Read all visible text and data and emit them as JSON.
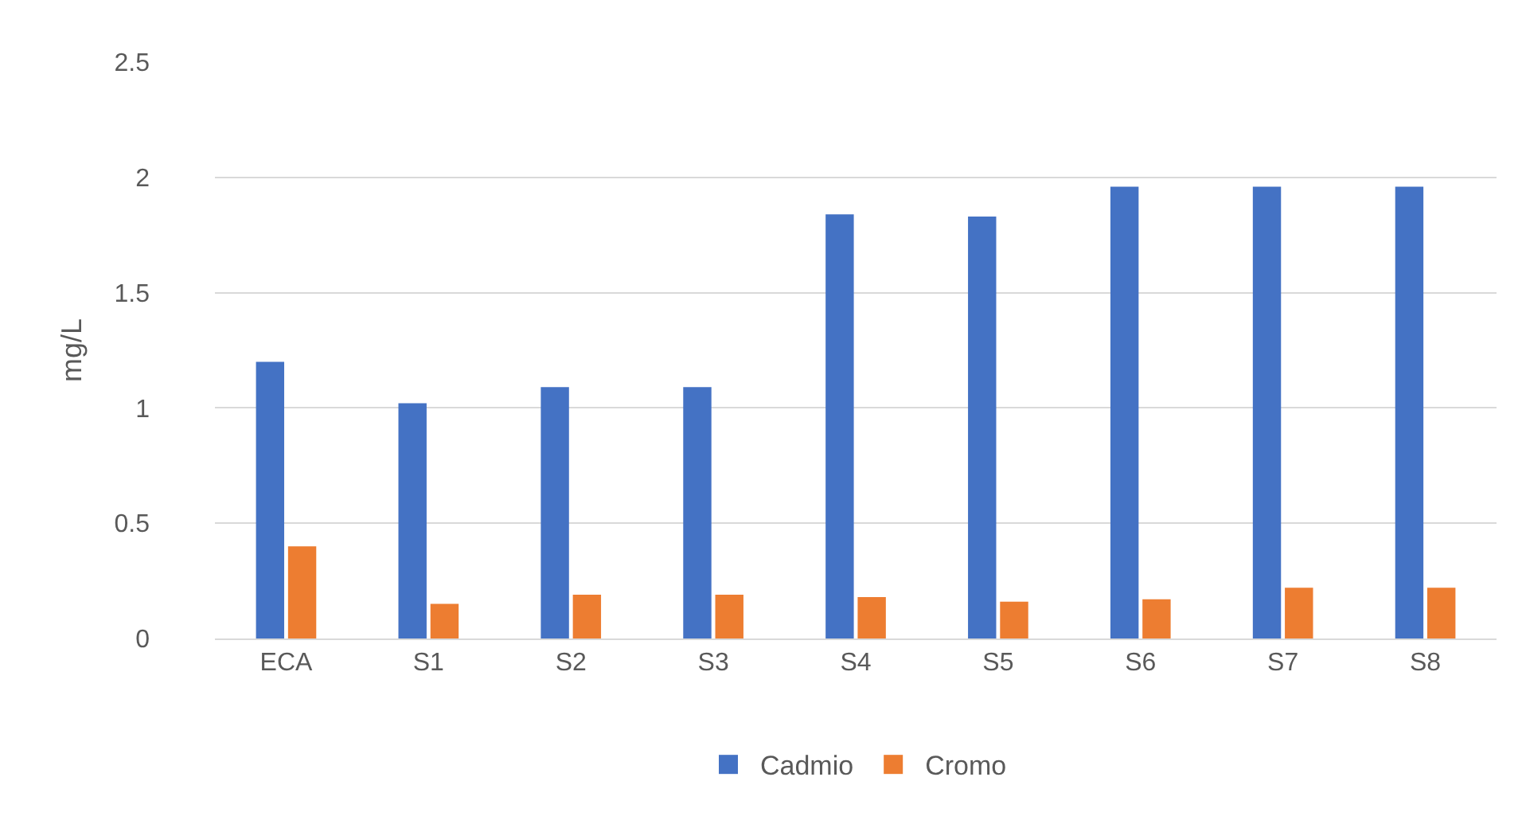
{
  "chart_data": {
    "type": "bar",
    "ylabel": "mg/L",
    "categories": [
      "ECA",
      "S1",
      "S2",
      "S3",
      "S4",
      "S5",
      "S6",
      "S7",
      "S8"
    ],
    "series": [
      {
        "name": "Cadmio",
        "color": "#4472c4",
        "values": [
          1.2,
          1.02,
          1.09,
          1.09,
          1.84,
          1.83,
          1.96,
          1.96,
          1.96
        ]
      },
      {
        "name": "Cromo",
        "color": "#ed7d31",
        "values": [
          0.4,
          0.15,
          0.19,
          0.19,
          0.18,
          0.16,
          0.17,
          0.22,
          0.22
        ]
      }
    ],
    "ylim": [
      0,
      2.5
    ],
    "yticks": [
      0,
      0.5,
      1,
      1.5,
      2,
      2.5
    ],
    "grid": "y",
    "legend": "bottom"
  }
}
